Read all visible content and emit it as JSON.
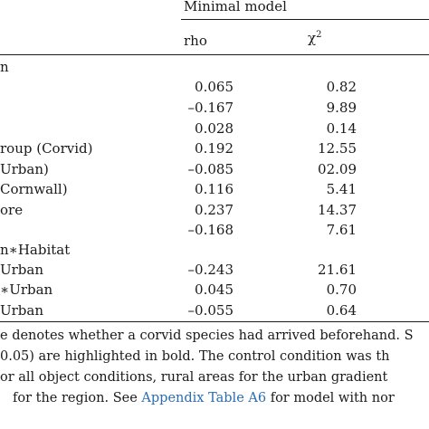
{
  "table": {
    "group_header": "Minimal model",
    "col_rho": "rho",
    "col_chi_base": "χ",
    "col_chi_sup": "2",
    "rows": [
      {
        "label": "n",
        "rho": "",
        "chi": ""
      },
      {
        "label": "",
        "rho": "0.065",
        "chi": "0.82"
      },
      {
        "label": "",
        "rho": "–0.167",
        "chi": "9.89"
      },
      {
        "label": "",
        "rho": "0.028",
        "chi": "0.14"
      },
      {
        "label": "roup (Corvid)",
        "rho": "0.192",
        "chi": "12.55"
      },
      {
        "label": "Urban)",
        "rho": "–0.085",
        "chi": "02.09"
      },
      {
        "label": "Cornwall)",
        "rho": "0.116",
        "chi": "5.41"
      },
      {
        "label": "ore",
        "rho": "0.237",
        "chi": "14.37"
      },
      {
        "label": "",
        "rho": "–0.168",
        "chi": "7.61"
      },
      {
        "label": "n∗Habitat",
        "rho": "",
        "chi": ""
      },
      {
        "label": "Urban",
        "rho": "–0.243",
        "chi": "21.61"
      },
      {
        "label": "∗Urban",
        "rho": "0.045",
        "chi": "0.70"
      },
      {
        "label": "Urban",
        "rho": "–0.055",
        "chi": "0.64"
      }
    ]
  },
  "footnote": {
    "line1": "e denotes whether a corvid species had arrived beforehand. S",
    "line2": "0.05) are highlighted in bold. The control condition was th",
    "line3": "or all object conditions, rural areas for the urban gradient",
    "line4_pre": "for the region. See ",
    "line4_link": "Appendix Table A6",
    "line4_post": " for model with nor"
  }
}
